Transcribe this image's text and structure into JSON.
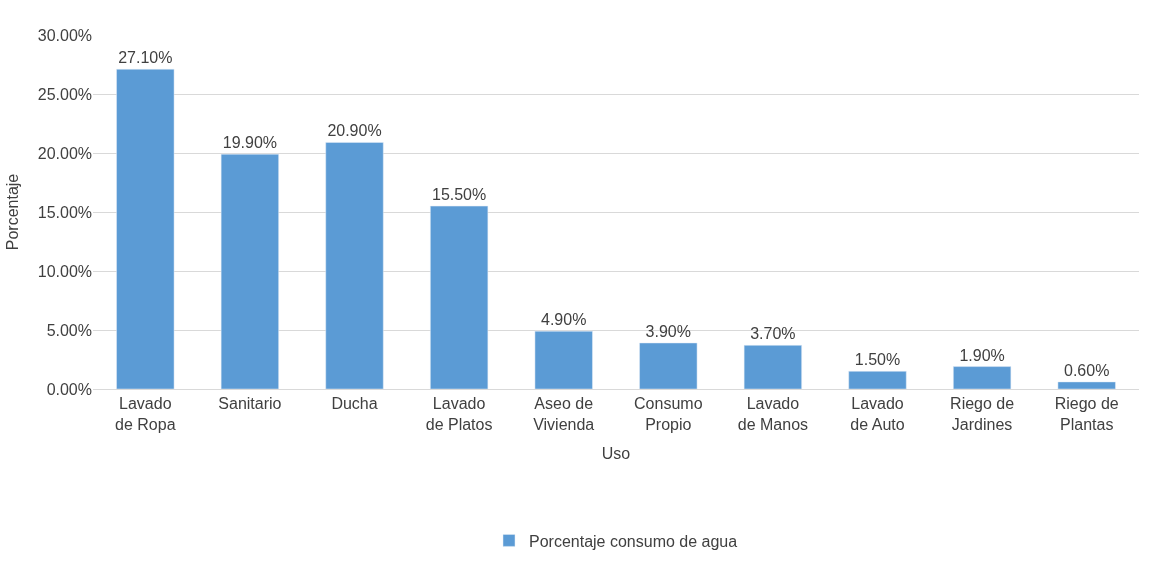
{
  "chart_data": {
    "type": "bar",
    "xlabel": "Uso",
    "ylabel": "Porcentaje",
    "categories": [
      "Lavado\nde Ropa",
      "Sanitario",
      "Ducha",
      "Lavado\nde Platos",
      "Aseo de\nVivienda",
      "Consumo\nPropio",
      "Lavado\nde Manos",
      "Lavado\nde Auto",
      "Riego de\nJardines",
      "Riego de\nPlantas"
    ],
    "series": [
      {
        "name": "Porcentaje consumo de agua",
        "color": "#5b9bd5",
        "values": [
          27.1,
          19.9,
          20.9,
          15.5,
          4.9,
          3.9,
          3.7,
          1.5,
          1.9,
          0.6
        ],
        "value_labels": [
          "27.10%",
          "19.90%",
          "20.90%",
          "15.50%",
          "4.90%",
          "3.90%",
          "3.70%",
          "1.50%",
          "1.90%",
          "0.60%"
        ]
      }
    ],
    "ylim": [
      0,
      30
    ],
    "yticks": [
      {
        "value": 0,
        "label": "0.00%"
      },
      {
        "value": 5,
        "label": "5.00%"
      },
      {
        "value": 10,
        "label": "10.00%"
      },
      {
        "value": 15,
        "label": "15.00%"
      },
      {
        "value": 20,
        "label": "20.00%"
      },
      {
        "value": 25,
        "label": "25.00%"
      },
      {
        "value": 30,
        "label": "30.00%"
      }
    ],
    "grid": "y",
    "legend": "bottom"
  }
}
